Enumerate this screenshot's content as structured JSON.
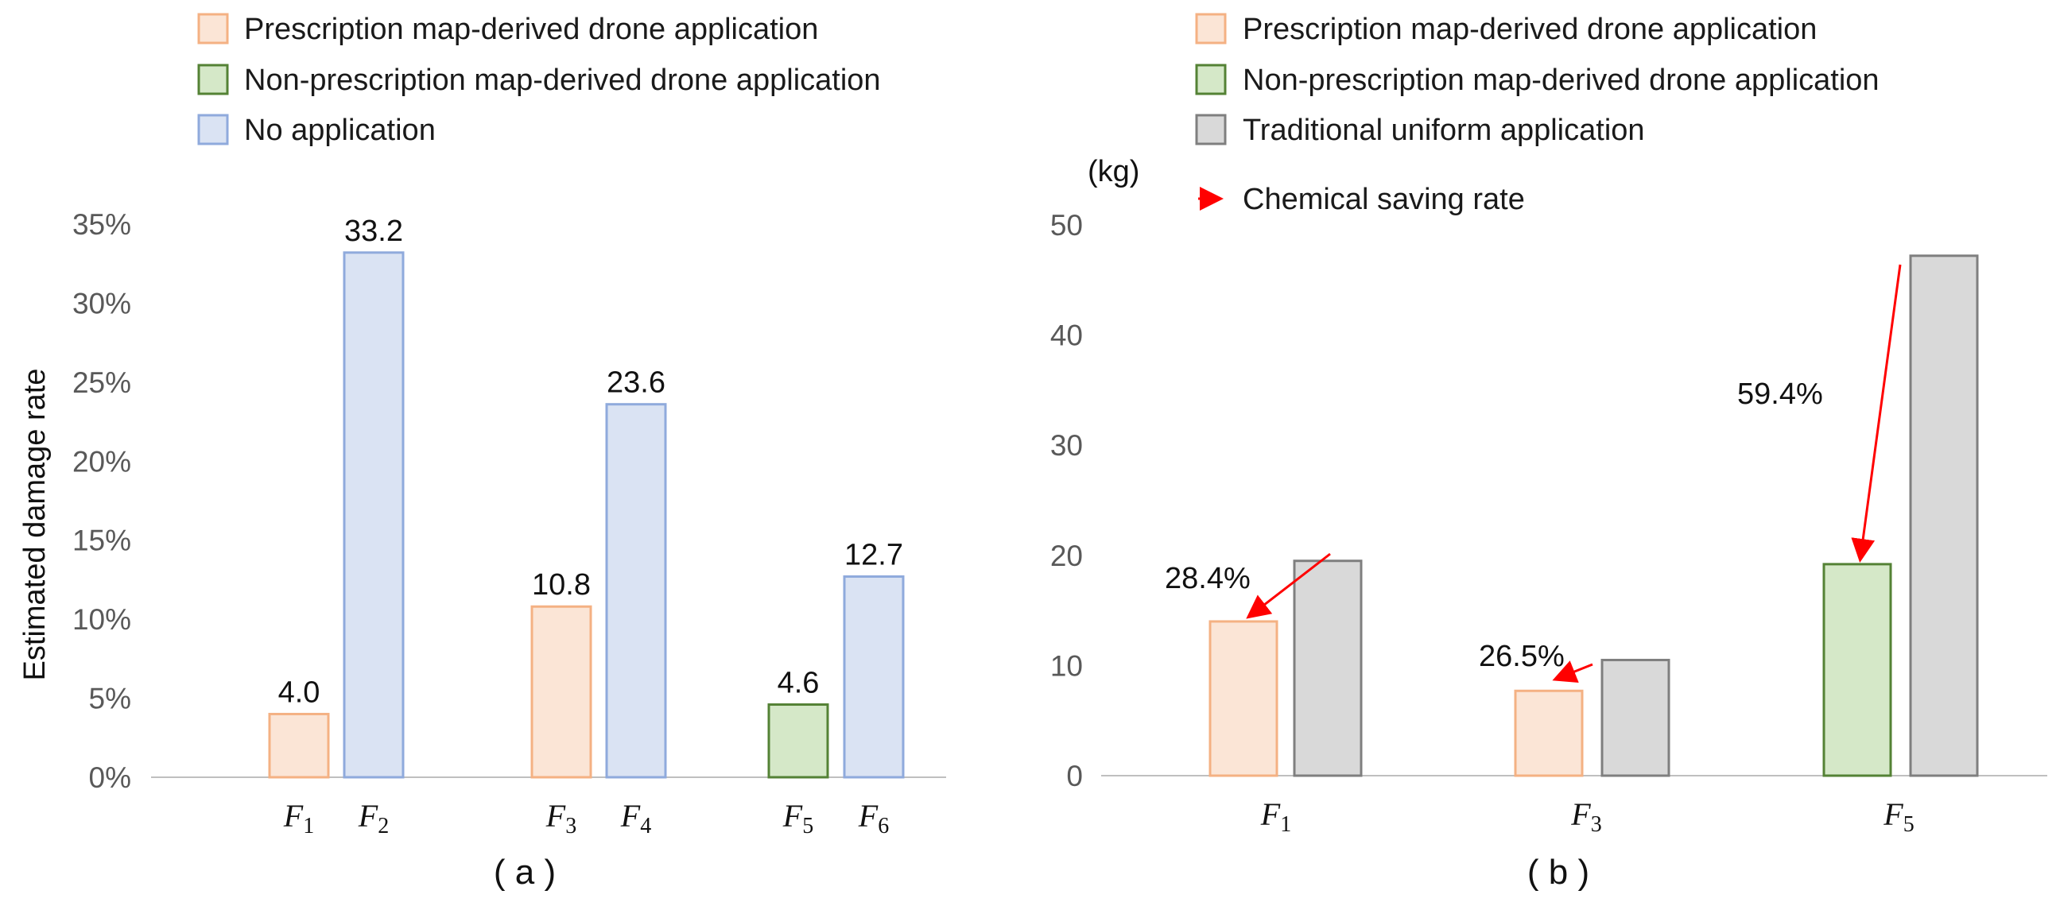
{
  "colors": {
    "prescription_fill": "#fbe5d6",
    "prescription_stroke": "#f4b183",
    "nonprescription_fill": "#d5e8c8",
    "nonprescription_stroke": "#548235",
    "noapp_fill": "#dae3f3",
    "noapp_stroke": "#8faadc",
    "uniform_fill": "#d9d9d9",
    "uniform_stroke": "#7f7f7f",
    "arrow": "#ff0000",
    "axis": "#bfbfbf"
  },
  "chart_data": [
    {
      "type": "bar",
      "panel_label": "( a )",
      "ylabel": "Estimated damage rate",
      "ylim": [
        0,
        35
      ],
      "yticks": [
        0,
        5,
        10,
        15,
        20,
        25,
        30,
        35
      ],
      "ytick_labels": [
        "0%",
        "5%",
        "10%",
        "15%",
        "20%",
        "25%",
        "30%",
        "35%"
      ],
      "legend": [
        {
          "key": "prescription",
          "label": "Prescription map-derived drone application"
        },
        {
          "key": "nonprescription",
          "label": "Non-prescription map-derived drone application"
        },
        {
          "key": "noapp",
          "label": "No application"
        }
      ],
      "bars": [
        {
          "cat": "F",
          "sub": "1",
          "value": 4.0,
          "label": "4.0",
          "series": "prescription"
        },
        {
          "cat": "F",
          "sub": "2",
          "value": 33.2,
          "label": "33.2",
          "series": "noapp"
        },
        {
          "cat": "F",
          "sub": "3",
          "value": 10.8,
          "label": "10.8",
          "series": "prescription"
        },
        {
          "cat": "F",
          "sub": "4",
          "value": 23.6,
          "label": "23.6",
          "series": "noapp"
        },
        {
          "cat": "F",
          "sub": "5",
          "value": 4.6,
          "label": "4.6",
          "series": "nonprescription"
        },
        {
          "cat": "F",
          "sub": "6",
          "value": 12.7,
          "label": "12.7",
          "series": "noapp"
        }
      ]
    },
    {
      "type": "bar",
      "panel_label": "( b )",
      "unit_label": "(kg)",
      "ylim": [
        0,
        50
      ],
      "yticks": [
        0,
        10,
        20,
        30,
        40,
        50
      ],
      "ytick_labels": [
        "0",
        "10",
        "20",
        "30",
        "40",
        "50"
      ],
      "legend": [
        {
          "key": "prescription",
          "label": "Prescription map-derived drone application"
        },
        {
          "key": "nonprescription",
          "label": "Non-prescription map-derived drone application"
        },
        {
          "key": "uniform",
          "label": "Traditional uniform application"
        },
        {
          "key": "arrow",
          "label": "Chemical saving rate"
        }
      ],
      "groups": [
        {
          "cat": "F",
          "sub": "1",
          "drone": 14.0,
          "drone_series": "prescription",
          "uniform": 19.5,
          "saving": "28.4%"
        },
        {
          "cat": "F",
          "sub": "3",
          "drone": 7.7,
          "drone_series": "prescription",
          "uniform": 10.5,
          "saving": "26.5%"
        },
        {
          "cat": "F",
          "sub": "5",
          "drone": 19.2,
          "drone_series": "nonprescription",
          "uniform": 47.2,
          "saving": "59.4%"
        }
      ]
    }
  ]
}
